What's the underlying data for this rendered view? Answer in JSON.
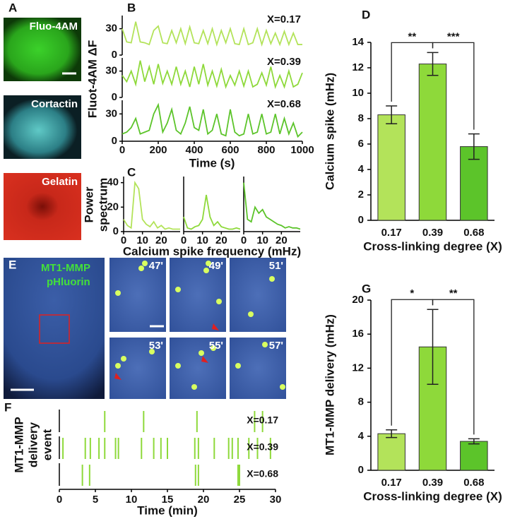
{
  "figure": {
    "panel_labels": [
      "A",
      "B",
      "C",
      "D",
      "E",
      "F",
      "G"
    ],
    "images_a": [
      "Fluo-4AM",
      "Cortactin",
      "Gelatin"
    ],
    "image_e": [
      "MT1-MMP",
      "pHluorin"
    ],
    "timepoints": [
      "47'",
      "49'",
      "51'",
      "53'",
      "55'",
      "57'"
    ]
  },
  "chart_data": [
    {
      "type": "line",
      "xlabel": "Time (s)",
      "ylabel": "Fluot-4AM ΔF",
      "x": [
        0,
        25,
        50,
        75,
        100,
        125,
        150,
        175,
        200,
        225,
        250,
        275,
        300,
        325,
        350,
        375,
        400,
        425,
        450,
        475,
        500,
        525,
        550,
        575,
        600,
        625,
        650,
        675,
        700,
        725,
        750,
        775,
        800,
        825,
        850,
        875,
        900,
        925,
        950,
        975,
        1000
      ],
      "xlim": [
        0,
        1000
      ],
      "xticks": [
        0,
        200,
        400,
        600,
        800,
        1000
      ],
      "ylim": [
        0,
        45
      ],
      "yticks": [
        0,
        30
      ],
      "series": [
        {
          "name": "X=0.17",
          "color": "#b3e35a",
          "values": [
            30,
            15,
            14,
            38,
            15,
            14,
            12,
            28,
            33,
            14,
            13,
            28,
            14,
            30,
            13,
            32,
            14,
            13,
            28,
            13,
            30,
            12,
            28,
            14,
            30,
            13,
            12,
            30,
            12,
            14,
            30,
            12,
            28,
            13,
            25,
            12,
            27,
            12,
            25,
            12,
            12
          ]
        },
        {
          "name": "X=0.39",
          "color": "#8ed93a",
          "values": [
            25,
            18,
            30,
            15,
            42,
            18,
            35,
            15,
            38,
            16,
            30,
            15,
            35,
            15,
            30,
            12,
            35,
            15,
            38,
            14,
            30,
            13,
            32,
            12,
            25,
            14,
            30,
            13,
            30,
            12,
            15,
            28,
            14,
            35,
            12,
            25,
            12,
            30,
            12,
            15,
            28
          ]
        },
        {
          "name": "X=0.68",
          "color": "#5cc42a",
          "values": [
            8,
            10,
            15,
            25,
            8,
            10,
            12,
            30,
            40,
            10,
            20,
            35,
            12,
            8,
            20,
            38,
            15,
            12,
            35,
            8,
            12,
            30,
            8,
            6,
            35,
            10,
            6,
            8,
            30,
            8,
            10,
            30,
            8,
            10,
            30,
            8,
            25,
            8,
            20,
            5,
            10
          ]
        }
      ]
    },
    {
      "type": "line",
      "xlabel": "Calcium spike frequency (mHz)",
      "ylabel": [
        "Power",
        "spectrum"
      ],
      "x": [
        0,
        2,
        4,
        6,
        8,
        10,
        12,
        14,
        16,
        18,
        20,
        22,
        24,
        26,
        28,
        30
      ],
      "xlim": [
        0,
        30
      ],
      "xticks": [
        0,
        10,
        20
      ],
      "ylim": [
        0,
        45
      ],
      "yticks": [
        0,
        20,
        40
      ],
      "series": [
        {
          "color": "#b3e35a",
          "values": [
            10,
            5,
            3,
            40,
            35,
            10,
            6,
            4,
            8,
            3,
            5,
            2,
            3,
            2,
            2,
            2
          ]
        },
        {
          "color": "#8ed93a",
          "values": [
            12,
            3,
            2,
            4,
            5,
            10,
            30,
            12,
            5,
            8,
            4,
            3,
            2,
            2,
            3,
            2
          ]
        },
        {
          "color": "#5cc42a",
          "values": [
            40,
            10,
            8,
            20,
            15,
            18,
            12,
            10,
            8,
            6,
            5,
            3,
            4,
            3,
            3,
            2
          ]
        }
      ]
    },
    {
      "type": "bar",
      "xlabel": "Cross-linking degree (X)",
      "ylabel": "Calcium spike (mHz)",
      "categories": [
        "0.17",
        "0.39",
        "0.68"
      ],
      "values": [
        8.3,
        12.3,
        5.8
      ],
      "errors": [
        0.7,
        0.9,
        1.0
      ],
      "colors": [
        "#b3e35a",
        "#8ed93a",
        "#5cc42a"
      ],
      "ylim": [
        0,
        14
      ],
      "yticks": [
        0,
        2,
        4,
        6,
        8,
        10,
        12,
        14
      ],
      "annotations": [
        "**",
        "***"
      ]
    },
    {
      "type": "event",
      "xlabel": "Time (min)",
      "ylabel": [
        "MT1-MMP",
        "delivery",
        "event"
      ],
      "xlim": [
        0,
        30
      ],
      "xticks": [
        0,
        5,
        10,
        15,
        20,
        25,
        30
      ],
      "series": [
        {
          "name": "X=0.17",
          "color": "#8ed93a",
          "values": [
            6.3,
            11.7,
            19.1,
            27.1,
            28.2
          ]
        },
        {
          "name": "X=0.39",
          "color": "#8ed93a",
          "values": [
            0.5,
            3.6,
            4.3,
            5.5,
            6.3,
            7.8,
            8.2,
            11.4,
            13.1,
            14.1,
            15.0,
            18.8,
            19.3,
            21.5,
            23.5,
            24.0,
            24.8,
            26.3,
            27.5,
            29.3
          ]
        },
        {
          "name": "X=0.68",
          "color": "#8ed93a",
          "values": [
            3.2,
            4.2,
            18.9,
            19.3,
            24.8,
            25.0
          ]
        }
      ]
    },
    {
      "type": "bar",
      "xlabel": "Cross-linking degree (X)",
      "ylabel": "MT1-MMP delivery (mHz)",
      "categories": [
        "0.17",
        "0.39",
        "0.68"
      ],
      "values": [
        4.3,
        14.5,
        3.4
      ],
      "errors": [
        0.45,
        4.4,
        0.3
      ],
      "colors": [
        "#b3e35a",
        "#8ed93a",
        "#5cc42a"
      ],
      "ylim": [
        0,
        20
      ],
      "yticks": [
        0,
        4,
        8,
        12,
        16,
        20
      ],
      "annotations": [
        "*",
        "**"
      ]
    }
  ]
}
